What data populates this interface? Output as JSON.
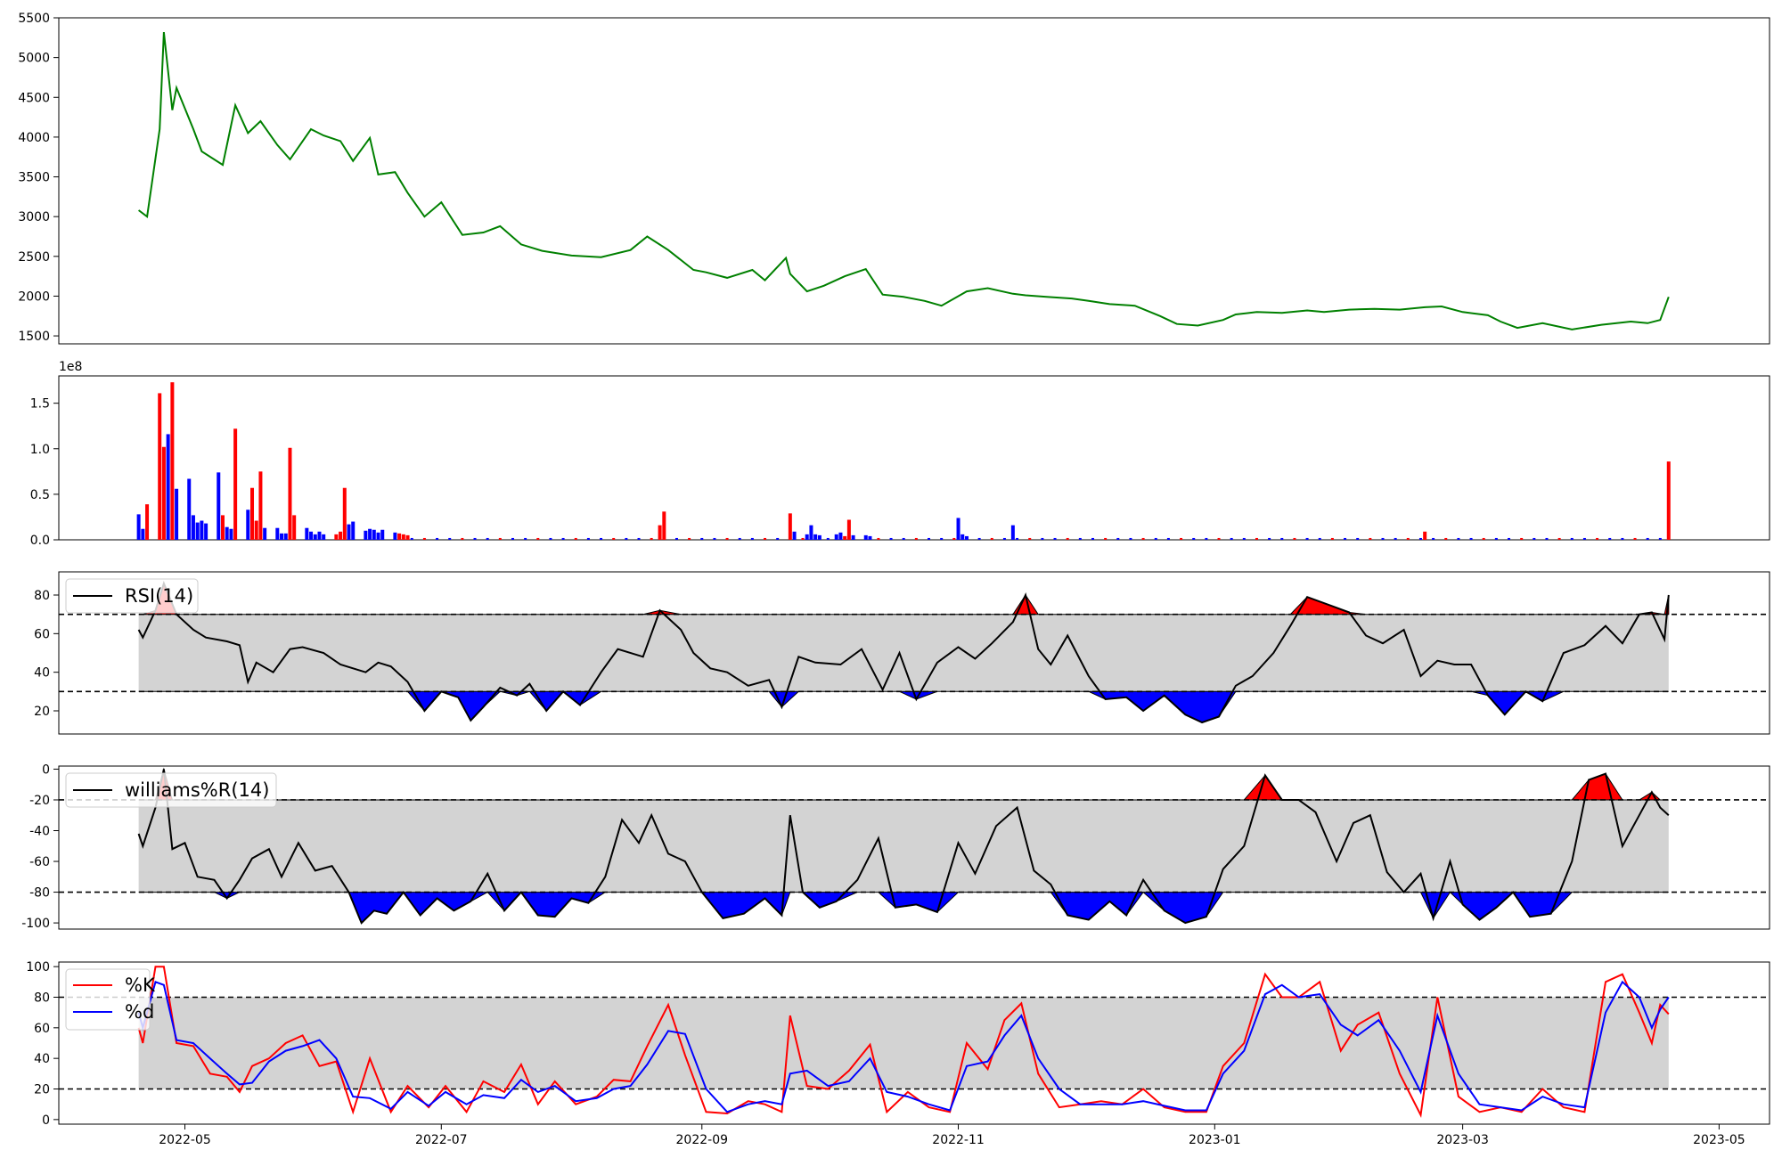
{
  "chart_data": [
    {
      "type": "line",
      "panel": "price",
      "color": "#008000",
      "ylim": [
        1400,
        5500
      ],
      "yticks": [
        "1500",
        "2000",
        "2500",
        "3000",
        "3500",
        "4000",
        "4500",
        "5000",
        "5500"
      ],
      "x": [
        "2022-04-20",
        "2022-04-22",
        "2022-04-25",
        "2022-04-26",
        "2022-04-28",
        "2022-04-29",
        "2022-05-03",
        "2022-05-05",
        "2022-05-10",
        "2022-05-13",
        "2022-05-16",
        "2022-05-19",
        "2022-05-23",
        "2022-05-26",
        "2022-05-31",
        "2022-06-03",
        "2022-06-07",
        "2022-06-10",
        "2022-06-14",
        "2022-06-16",
        "2022-06-20",
        "2022-06-23",
        "2022-06-27",
        "2022-07-01",
        "2022-07-06",
        "2022-07-11",
        "2022-07-15",
        "2022-07-20",
        "2022-07-25",
        "2022-08-01",
        "2022-08-08",
        "2022-08-15",
        "2022-08-19",
        "2022-08-24",
        "2022-08-30",
        "2022-09-02",
        "2022-09-07",
        "2022-09-13",
        "2022-09-16",
        "2022-09-21",
        "2022-09-22",
        "2022-09-26",
        "2022-09-30",
        "2022-10-05",
        "2022-10-10",
        "2022-10-14",
        "2022-10-19",
        "2022-10-24",
        "2022-10-28",
        "2022-11-03",
        "2022-11-08",
        "2022-11-14",
        "2022-11-17",
        "2022-11-22",
        "2022-11-28",
        "2022-12-02",
        "2022-12-07",
        "2022-12-13",
        "2022-12-19",
        "2022-12-23",
        "2022-12-28",
        "2023-01-03",
        "2023-01-06",
        "2023-01-11",
        "2023-01-17",
        "2023-01-23",
        "2023-01-27",
        "2023-02-02",
        "2023-02-08",
        "2023-02-14",
        "2023-02-20",
        "2023-02-24",
        "2023-03-01",
        "2023-03-07",
        "2023-03-10",
        "2023-03-14",
        "2023-03-20",
        "2023-03-27",
        "2023-04-03",
        "2023-04-10",
        "2023-04-14",
        "2023-04-17",
        "2023-04-19"
      ],
      "values": [
        3080,
        3000,
        4100,
        5320,
        4340,
        4620,
        4100,
        3820,
        3650,
        4400,
        4050,
        4200,
        3900,
        3720,
        4100,
        4020,
        3950,
        3700,
        3990,
        3530,
        3560,
        3300,
        3000,
        3180,
        2770,
        2800,
        2880,
        2650,
        2570,
        2510,
        2490,
        2580,
        2750,
        2580,
        2330,
        2300,
        2230,
        2330,
        2200,
        2480,
        2280,
        2060,
        2130,
        2250,
        2340,
        2020,
        1990,
        1940,
        1880,
        2060,
        2100,
        2030,
        2010,
        1990,
        1970,
        1940,
        1900,
        1880,
        1750,
        1650,
        1630,
        1700,
        1770,
        1800,
        1790,
        1820,
        1800,
        1830,
        1840,
        1830,
        1860,
        1870,
        1800,
        1760,
        1680,
        1600,
        1660,
        1580,
        1640,
        1680,
        1660,
        1700,
        1990
      ]
    },
    {
      "type": "bar",
      "panel": "volume",
      "multiplier_label": "1e8",
      "ylim": [
        0,
        1.8
      ],
      "yticks": [
        "0.0",
        "0.5",
        "1.0",
        "1.5"
      ],
      "up_color": "#ff0000",
      "down_color": "#0000ff",
      "x": [
        "2022-04-20",
        "2022-04-21",
        "2022-04-22",
        "2022-04-25",
        "2022-04-26",
        "2022-04-27",
        "2022-04-28",
        "2022-04-29",
        "2022-05-02",
        "2022-05-03",
        "2022-05-04",
        "2022-05-05",
        "2022-05-06",
        "2022-05-09",
        "2022-05-10",
        "2022-05-11",
        "2022-05-12",
        "2022-05-13",
        "2022-05-16",
        "2022-05-17",
        "2022-05-18",
        "2022-05-19",
        "2022-05-20",
        "2022-05-23",
        "2022-05-24",
        "2022-05-25",
        "2022-05-26",
        "2022-05-27",
        "2022-05-30",
        "2022-05-31",
        "2022-06-01",
        "2022-06-02",
        "2022-06-03",
        "2022-06-06",
        "2022-06-07",
        "2022-06-08",
        "2022-06-09",
        "2022-06-10",
        "2022-06-13",
        "2022-06-14",
        "2022-06-15",
        "2022-06-16",
        "2022-06-17",
        "2022-06-20",
        "2022-06-21",
        "2022-06-22",
        "2022-06-23",
        "2022-08-22",
        "2022-08-23",
        "2022-09-22",
        "2022-09-23",
        "2022-09-26",
        "2022-09-27",
        "2022-09-28",
        "2022-09-29",
        "2022-10-03",
        "2022-10-04",
        "2022-10-05",
        "2022-10-06",
        "2022-10-07",
        "2022-10-10",
        "2022-10-11",
        "2022-11-01",
        "2022-11-02",
        "2022-11-03",
        "2022-11-14",
        "2023-02-20",
        "2023-04-19"
      ],
      "values": [
        0.28,
        0.12,
        0.39,
        1.61,
        1.02,
        1.16,
        1.73,
        0.56,
        0.67,
        0.27,
        0.19,
        0.21,
        0.18,
        0.74,
        0.27,
        0.14,
        0.12,
        1.22,
        0.33,
        0.57,
        0.21,
        0.75,
        0.13,
        0.13,
        0.07,
        0.07,
        1.01,
        0.27,
        0.13,
        0.09,
        0.06,
        0.09,
        0.06,
        0.06,
        0.09,
        0.57,
        0.17,
        0.2,
        0.1,
        0.12,
        0.11,
        0.08,
        0.11,
        0.08,
        0.07,
        0.06,
        0.05,
        0.16,
        0.31,
        0.29,
        0.09,
        0.06,
        0.16,
        0.06,
        0.05,
        0.06,
        0.08,
        0.04,
        0.22,
        0.05,
        0.05,
        0.04,
        0.24,
        0.06,
        0.04,
        0.16,
        0.09,
        0.86
      ],
      "colors": [
        "down",
        "down",
        "up",
        "up",
        "up",
        "down",
        "up",
        "down",
        "down",
        "down",
        "down",
        "down",
        "down",
        "down",
        "up",
        "down",
        "down",
        "up",
        "down",
        "up",
        "up",
        "up",
        "down",
        "down",
        "down",
        "down",
        "up",
        "up",
        "down",
        "down",
        "down",
        "down",
        "down",
        "up",
        "up",
        "up",
        "down",
        "down",
        "down",
        "down",
        "down",
        "down",
        "down",
        "down",
        "up",
        "up",
        "up",
        "up",
        "up",
        "up",
        "down",
        "down",
        "down",
        "down",
        "down",
        "down",
        "down",
        "up",
        "up",
        "down",
        "down",
        "down",
        "down",
        "down",
        "down",
        "down",
        "up",
        "up"
      ],
      "baseline_volume": 0.02
    },
    {
      "type": "line",
      "panel": "rsi",
      "legend": "RSI(14)",
      "ylim": [
        8,
        92
      ],
      "yticks": [
        "20",
        "40",
        "60",
        "80"
      ],
      "upper": 70,
      "lower": 30,
      "x": [
        "2022-04-20",
        "2022-04-21",
        "2022-04-24",
        "2022-04-26",
        "2022-04-29",
        "2022-05-03",
        "2022-05-06",
        "2022-05-11",
        "2022-05-14",
        "2022-05-16",
        "2022-05-18",
        "2022-05-22",
        "2022-05-26",
        "2022-05-29",
        "2022-06-03",
        "2022-06-07",
        "2022-06-13",
        "2022-06-16",
        "2022-06-19",
        "2022-06-23",
        "2022-06-27",
        "2022-07-01",
        "2022-07-05",
        "2022-07-08",
        "2022-07-11",
        "2022-07-15",
        "2022-07-19",
        "2022-07-22",
        "2022-07-26",
        "2022-07-30",
        "2022-08-03",
        "2022-08-08",
        "2022-08-12",
        "2022-08-18",
        "2022-08-22",
        "2022-08-27",
        "2022-08-30",
        "2022-09-03",
        "2022-09-07",
        "2022-09-12",
        "2022-09-17",
        "2022-09-20",
        "2022-09-24",
        "2022-09-28",
        "2022-10-04",
        "2022-10-09",
        "2022-10-14",
        "2022-10-18",
        "2022-10-22",
        "2022-10-27",
        "2022-11-01",
        "2022-11-05",
        "2022-11-09",
        "2022-11-14",
        "2022-11-17",
        "2022-11-20",
        "2022-11-23",
        "2022-11-27",
        "2022-12-02",
        "2022-12-06",
        "2022-12-11",
        "2022-12-15",
        "2022-12-20",
        "2022-12-25",
        "2022-12-29",
        "2023-01-02",
        "2023-01-06",
        "2023-01-10",
        "2023-01-15",
        "2023-01-19",
        "2023-01-23",
        "2023-01-28",
        "2023-02-02",
        "2023-02-06",
        "2023-02-10",
        "2023-02-15",
        "2023-02-19",
        "2023-02-23",
        "2023-02-27",
        "2023-03-03",
        "2023-03-07",
        "2023-03-11",
        "2023-03-16",
        "2023-03-20",
        "2023-03-25",
        "2023-03-30",
        "2023-04-04",
        "2023-04-08",
        "2023-04-12",
        "2023-04-15",
        "2023-04-18",
        "2023-04-19"
      ],
      "values": [
        62,
        58,
        72,
        86,
        70,
        62,
        58,
        56,
        54,
        35,
        45,
        40,
        52,
        53,
        50,
        44,
        40,
        45,
        43,
        35,
        20,
        30,
        27,
        15,
        22,
        32,
        28,
        34,
        20,
        30,
        23,
        40,
        52,
        48,
        72,
        62,
        50,
        42,
        40,
        33,
        36,
        22,
        48,
        45,
        44,
        52,
        31,
        50,
        26,
        45,
        53,
        47,
        55,
        66,
        80,
        52,
        44,
        59,
        38,
        26,
        27,
        20,
        28,
        18,
        14,
        17,
        33,
        38,
        50,
        64,
        79,
        75,
        71,
        59,
        55,
        62,
        38,
        46,
        44,
        44,
        28,
        18,
        30,
        25,
        50,
        54,
        64,
        55,
        70,
        71,
        57,
        80
      ]
    },
    {
      "type": "line",
      "panel": "williams",
      "legend": "williams%R(14)",
      "ylim": [
        -104,
        2
      ],
      "yticks": [
        "-100",
        "-80",
        "-60",
        "-40",
        "-20",
        "0"
      ],
      "upper": -20,
      "lower": -80,
      "x": [
        "2022-04-20",
        "2022-04-21",
        "2022-04-24",
        "2022-04-26",
        "2022-04-28",
        "2022-05-01",
        "2022-05-04",
        "2022-05-08",
        "2022-05-11",
        "2022-05-14",
        "2022-05-17",
        "2022-05-21",
        "2022-05-24",
        "2022-05-28",
        "2022-06-01",
        "2022-06-05",
        "2022-06-09",
        "2022-06-12",
        "2022-06-15",
        "2022-06-18",
        "2022-06-22",
        "2022-06-26",
        "2022-06-30",
        "2022-07-04",
        "2022-07-08",
        "2022-07-12",
        "2022-07-16",
        "2022-07-20",
        "2022-07-24",
        "2022-07-28",
        "2022-08-01",
        "2022-08-05",
        "2022-08-09",
        "2022-08-13",
        "2022-08-17",
        "2022-08-20",
        "2022-08-24",
        "2022-08-28",
        "2022-09-01",
        "2022-09-06",
        "2022-09-11",
        "2022-09-16",
        "2022-09-20",
        "2022-09-22",
        "2022-09-25",
        "2022-09-29",
        "2022-10-03",
        "2022-10-08",
        "2022-10-13",
        "2022-10-17",
        "2022-10-22",
        "2022-10-27",
        "2022-11-01",
        "2022-11-05",
        "2022-11-10",
        "2022-11-15",
        "2022-11-19",
        "2022-11-23",
        "2022-11-27",
        "2022-12-02",
        "2022-12-07",
        "2022-12-11",
        "2022-12-15",
        "2022-12-20",
        "2022-12-25",
        "2022-12-30",
        "2023-01-03",
        "2023-01-08",
        "2023-01-13",
        "2023-01-17",
        "2023-01-21",
        "2023-01-25",
        "2023-01-30",
        "2023-02-03",
        "2023-02-07",
        "2023-02-11",
        "2023-02-15",
        "2023-02-19",
        "2023-02-22",
        "2023-02-26",
        "2023-03-01",
        "2023-03-05",
        "2023-03-09",
        "2023-03-13",
        "2023-03-17",
        "2023-03-22",
        "2023-03-27",
        "2023-03-31",
        "2023-04-04",
        "2023-04-08",
        "2023-04-12",
        "2023-04-15",
        "2023-04-17",
        "2023-04-19"
      ],
      "values": [
        -42,
        -50,
        -25,
        0,
        -52,
        -48,
        -70,
        -72,
        -84,
        -72,
        -58,
        -52,
        -70,
        -48,
        -66,
        -63,
        -80,
        -100,
        -92,
        -94,
        -80,
        -95,
        -84,
        -92,
        -86,
        -68,
        -92,
        -80,
        -95,
        -96,
        -84,
        -87,
        -70,
        -33,
        -48,
        -30,
        -55,
        -60,
        -80,
        -97,
        -94,
        -84,
        -95,
        -30,
        -80,
        -90,
        -86,
        -72,
        -45,
        -90,
        -88,
        -93,
        -48,
        -68,
        -37,
        -25,
        -66,
        -75,
        -95,
        -98,
        -86,
        -95,
        -72,
        -92,
        -100,
        -96,
        -65,
        -50,
        -4,
        -20,
        -20,
        -28,
        -60,
        -35,
        -30,
        -67,
        -80,
        -68,
        -97,
        -60,
        -88,
        -98,
        -90,
        -80,
        -96,
        -94,
        -60,
        -7,
        -3,
        -50,
        -30,
        -15,
        -25,
        -30
      ]
    },
    {
      "type": "line",
      "panel": "stochastic",
      "ylim": [
        -3,
        103
      ],
      "yticks": [
        "0",
        "20",
        "40",
        "60",
        "80",
        "100"
      ],
      "upper": 80,
      "lower": 20,
      "x": [
        "2022-04-20",
        "2022-04-21",
        "2022-04-24",
        "2022-04-26",
        "2022-04-29",
        "2022-05-03",
        "2022-05-07",
        "2022-05-11",
        "2022-05-14",
        "2022-05-17",
        "2022-05-21",
        "2022-05-25",
        "2022-05-29",
        "2022-06-02",
        "2022-06-06",
        "2022-06-10",
        "2022-06-14",
        "2022-06-19",
        "2022-06-23",
        "2022-06-28",
        "2022-07-02",
        "2022-07-07",
        "2022-07-11",
        "2022-07-16",
        "2022-07-20",
        "2022-07-24",
        "2022-07-28",
        "2022-08-02",
        "2022-08-07",
        "2022-08-11",
        "2022-08-15",
        "2022-08-19",
        "2022-08-24",
        "2022-08-28",
        "2022-09-02",
        "2022-09-07",
        "2022-09-12",
        "2022-09-16",
        "2022-09-20",
        "2022-09-22",
        "2022-09-26",
        "2022-10-01",
        "2022-10-06",
        "2022-10-11",
        "2022-10-15",
        "2022-10-20",
        "2022-10-25",
        "2022-10-30",
        "2022-11-03",
        "2022-11-08",
        "2022-11-12",
        "2022-11-16",
        "2022-11-20",
        "2022-11-25",
        "2022-11-30",
        "2022-12-05",
        "2022-12-10",
        "2022-12-15",
        "2022-12-20",
        "2022-12-25",
        "2022-12-30",
        "2023-01-03",
        "2023-01-08",
        "2023-01-13",
        "2023-01-17",
        "2023-01-21",
        "2023-01-26",
        "2023-01-31",
        "2023-02-04",
        "2023-02-09",
        "2023-02-14",
        "2023-02-19",
        "2023-02-23",
        "2023-02-28",
        "2023-03-05",
        "2023-03-10",
        "2023-03-15",
        "2023-03-20",
        "2023-03-25",
        "2023-03-30",
        "2023-04-04",
        "2023-04-08",
        "2023-04-12",
        "2023-04-15",
        "2023-04-17",
        "2023-04-19"
      ],
      "series": [
        {
          "name": "%K",
          "color": "#ff0000",
          "values": [
            60,
            50,
            100,
            100,
            50,
            48,
            30,
            28,
            18,
            35,
            40,
            50,
            55,
            35,
            38,
            5,
            40,
            5,
            22,
            8,
            22,
            5,
            25,
            18,
            36,
            10,
            25,
            10,
            15,
            26,
            25,
            48,
            75,
            42,
            5,
            4,
            12,
            10,
            5,
            68,
            22,
            20,
            32,
            49,
            5,
            18,
            8,
            5,
            50,
            33,
            65,
            76,
            30,
            8,
            10,
            12,
            10,
            20,
            8,
            5,
            5,
            35,
            50,
            95,
            80,
            80,
            90,
            45,
            62,
            70,
            30,
            3,
            80,
            15,
            5,
            8,
            5,
            20,
            8,
            5,
            90,
            95,
            70,
            50,
            75,
            69
          ]
        },
        {
          "name": "%d",
          "color": "#0000ff",
          "values": [
            70,
            60,
            90,
            88,
            52,
            50,
            40,
            30,
            23,
            24,
            38,
            45,
            48,
            52,
            40,
            15,
            14,
            7,
            18,
            9,
            18,
            10,
            16,
            14,
            26,
            18,
            22,
            12,
            14,
            20,
            22,
            36,
            58,
            56,
            20,
            5,
            10,
            12,
            10,
            30,
            32,
            22,
            25,
            40,
            18,
            15,
            10,
            6,
            35,
            38,
            55,
            68,
            40,
            20,
            10,
            10,
            10,
            12,
            9,
            6,
            6,
            30,
            45,
            82,
            88,
            80,
            82,
            62,
            55,
            65,
            45,
            18,
            68,
            30,
            10,
            8,
            6,
            15,
            10,
            8,
            70,
            90,
            80,
            60,
            72,
            80
          ]
        }
      ]
    }
  ],
  "x_axis": {
    "ticks": [
      "2022-05",
      "2022-07",
      "2022-09",
      "2022-11",
      "2023-01",
      "2023-03",
      "2023-05"
    ]
  }
}
